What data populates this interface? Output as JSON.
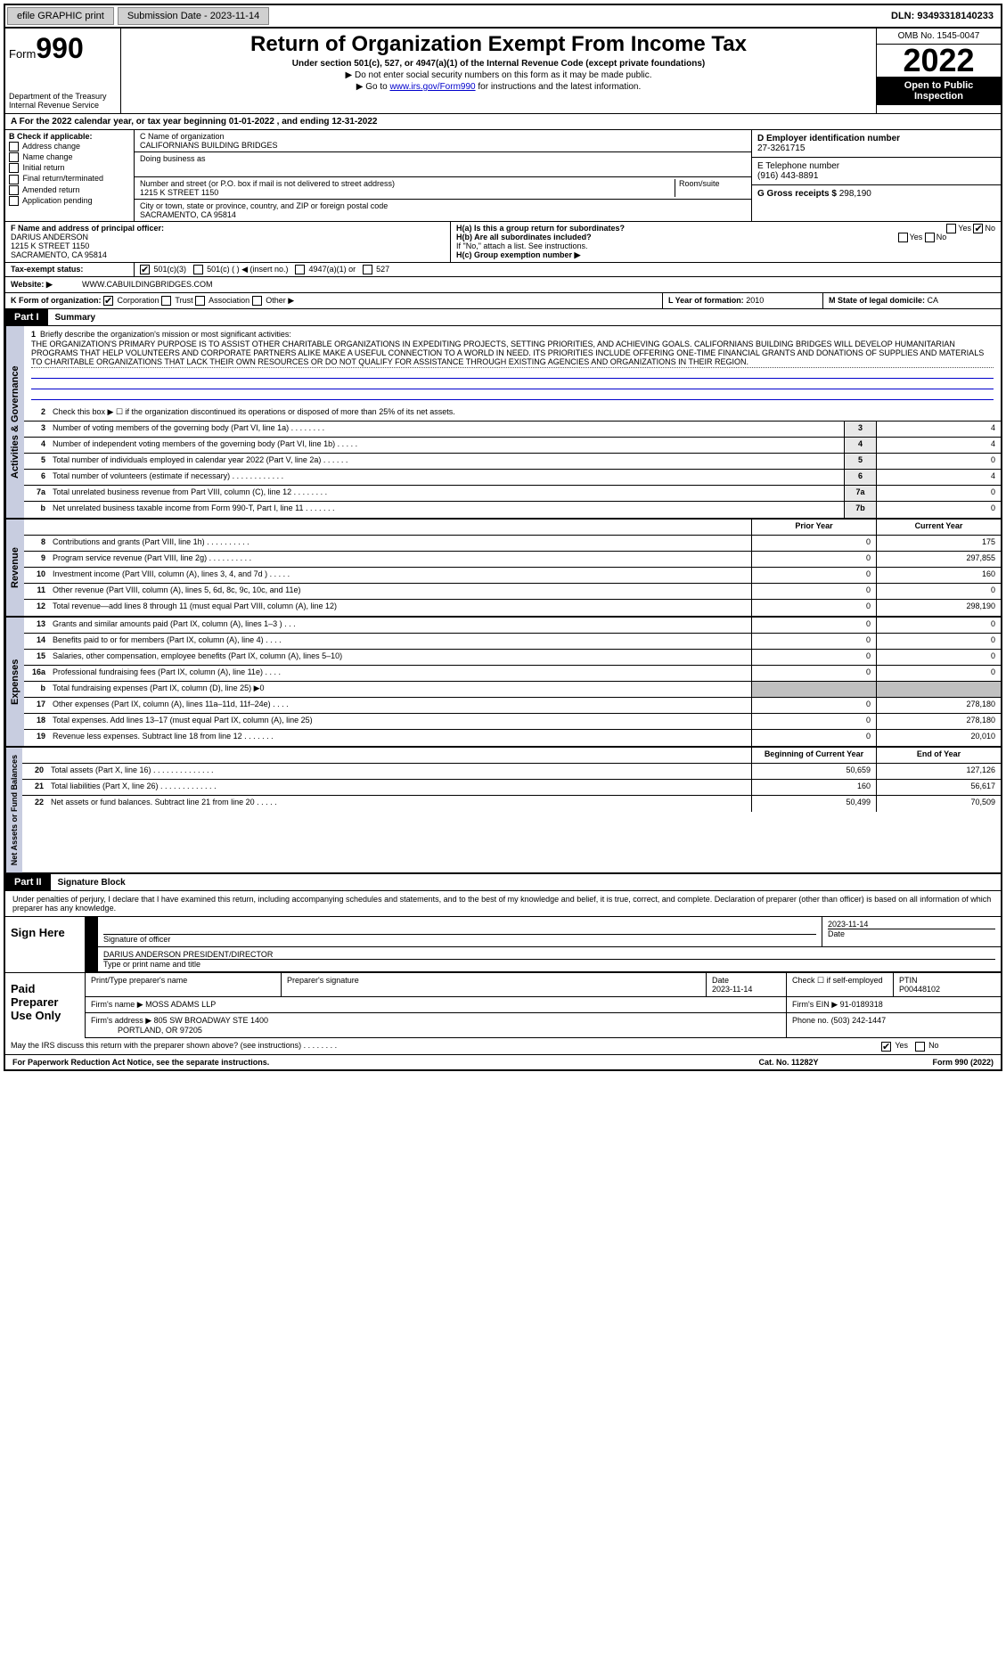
{
  "topbar": {
    "efile": "efile GRAPHIC print",
    "submission_label": "Submission Date - 2023-11-14",
    "dln": "DLN: 93493318140233"
  },
  "header": {
    "form_label": "Form",
    "form_num": "990",
    "title": "Return of Organization Exempt From Income Tax",
    "subtitle": "Under section 501(c), 527, or 4947(a)(1) of the Internal Revenue Code (except private foundations)",
    "note1": "▶ Do not enter social security numbers on this form as it may be made public.",
    "note2_pre": "▶ Go to ",
    "note2_link": "www.irs.gov/Form990",
    "note2_post": " for instructions and the latest information.",
    "dept": "Department of the Treasury",
    "irs": "Internal Revenue Service",
    "omb": "OMB No. 1545-0047",
    "year": "2022",
    "inspection": "Open to Public Inspection"
  },
  "period": {
    "line": "A For the 2022 calendar year, or tax year beginning 01-01-2022     , and ending 12-31-2022"
  },
  "blockB": {
    "label": "B Check if applicable:",
    "items": [
      "Address change",
      "Name change",
      "Initial return",
      "Final return/terminated",
      "Amended return",
      "Application pending"
    ]
  },
  "blockC": {
    "name_label": "C Name of organization",
    "name": "CALIFORNIANS BUILDING BRIDGES",
    "dba_label": "Doing business as",
    "addr_label": "Number and street (or P.O. box if mail is not delivered to street address)",
    "room_label": "Room/suite",
    "addr": "1215 K STREET 1150",
    "city_label": "City or town, state or province, country, and ZIP or foreign postal code",
    "city": "SACRAMENTO, CA  95814"
  },
  "blockD": {
    "label": "D Employer identification number",
    "val": "27-3261715"
  },
  "blockE": {
    "label": "E Telephone number",
    "val": "(916) 443-8891"
  },
  "blockG": {
    "label": "G Gross receipts $",
    "val": "298,190"
  },
  "blockF": {
    "label": "F  Name and address of principal officer:",
    "name": "DARIUS ANDERSON",
    "addr1": "1215 K STREET 1150",
    "addr2": "SACRAMENTO, CA  95814"
  },
  "blockH": {
    "ha": "H(a)  Is this a group return for subordinates?",
    "hb": "H(b)  Are all subordinates included?",
    "hb_note": "If \"No,\" attach a list. See instructions.",
    "hc": "H(c)  Group exemption number ▶",
    "yes": "Yes",
    "no": "No"
  },
  "taxExempt": {
    "label": "Tax-exempt status:",
    "c3": "501(c)(3)",
    "c": "501(c) (   ) ◀ (insert no.)",
    "a1": "4947(a)(1) or",
    "s527": "527"
  },
  "website": {
    "label": "Website: ▶",
    "val": "WWW.CABUILDINGBRIDGES.COM"
  },
  "blockK": {
    "label": "K Form of organization:",
    "corp": "Corporation",
    "trust": "Trust",
    "assoc": "Association",
    "other": "Other ▶"
  },
  "blockL": {
    "label": "L Year of formation:",
    "val": "2010"
  },
  "blockM": {
    "label": "M State of legal domicile:",
    "val": "CA"
  },
  "part1": {
    "header": "Part I",
    "title": "Summary",
    "mission_label": "Briefly describe the organization's mission or most significant activities:",
    "mission": "THE ORGANIZATION'S PRIMARY PURPOSE IS TO ASSIST OTHER CHARITABLE ORGANIZATIONS IN EXPEDITING PROJECTS, SETTING PRIORITIES, AND ACHIEVING GOALS. CALIFORNIANS BUILDING BRIDGES WILL DEVELOP HUMANITARIAN PROGRAMS THAT HELP VOLUNTEERS AND CORPORATE PARTNERS ALIKE MAKE A USEFUL CONNECTION TO A WORLD IN NEED. ITS PRIORITIES INCLUDE OFFERING ONE-TIME FINANCIAL GRANTS AND DONATIONS OF SUPPLIES AND MATERIALS TO CHARITABLE ORGANIZATIONS THAT LACK THEIR OWN RESOURCES OR DO NOT QUALIFY FOR ASSISTANCE THROUGH EXISTING AGENCIES AND ORGANIZATIONS IN THEIR REGION.",
    "line2": "Check this box ▶ ☐ if the organization discontinued its operations or disposed of more than 25% of its net assets.",
    "vlabels": {
      "ag": "Activities & Governance",
      "rev": "Revenue",
      "exp": "Expenses",
      "net": "Net Assets or Fund Balances"
    },
    "headers": {
      "prior": "Prior Year",
      "current": "Current Year",
      "boy": "Beginning of Current Year",
      "eoy": "End of Year"
    },
    "lines_ag": [
      {
        "n": "3",
        "t": "Number of voting members of the governing body (Part VI, line 1a)   .    .    .    .    .    .    .    .",
        "c": "3",
        "v": "4"
      },
      {
        "n": "4",
        "t": "Number of independent voting members of the governing body (Part VI, line 1b)   .    .    .    .    .",
        "c": "4",
        "v": "4"
      },
      {
        "n": "5",
        "t": "Total number of individuals employed in calendar year 2022 (Part V, line 2a)   .    .    .    .    .    .",
        "c": "5",
        "v": "0"
      },
      {
        "n": "6",
        "t": "Total number of volunteers (estimate if necessary)   .    .    .    .    .    .    .    .    .    .    .    .",
        "c": "6",
        "v": "4"
      },
      {
        "n": "7a",
        "t": "Total unrelated business revenue from Part VIII, column (C), line 12   .    .    .    .    .    .    .    .",
        "c": "7a",
        "v": "0"
      },
      {
        "n": "b",
        "t": "Net unrelated business taxable income from Form 990-T, Part I, line 11   .    .    .    .    .    .    .",
        "c": "7b",
        "v": "0"
      }
    ],
    "lines_rev": [
      {
        "n": "8",
        "t": "Contributions and grants (Part VIII, line 1h)   .    .    .    .    .    .    .    .    .    .",
        "p": "0",
        "c": "175"
      },
      {
        "n": "9",
        "t": "Program service revenue (Part VIII, line 2g)   .    .    .    .    .    .    .    .    .    .",
        "p": "0",
        "c": "297,855"
      },
      {
        "n": "10",
        "t": "Investment income (Part VIII, column (A), lines 3, 4, and 7d )   .    .    .    .    .",
        "p": "0",
        "c": "160"
      },
      {
        "n": "11",
        "t": "Other revenue (Part VIII, column (A), lines 5, 6d, 8c, 9c, 10c, and 11e)",
        "p": "0",
        "c": "0"
      },
      {
        "n": "12",
        "t": "Total revenue—add lines 8 through 11 (must equal Part VIII, column (A), line 12)",
        "p": "0",
        "c": "298,190"
      }
    ],
    "lines_exp": [
      {
        "n": "13",
        "t": "Grants and similar amounts paid (Part IX, column (A), lines 1–3 )   .    .    .",
        "p": "0",
        "c": "0"
      },
      {
        "n": "14",
        "t": "Benefits paid to or for members (Part IX, column (A), line 4)   .    .    .    .",
        "p": "0",
        "c": "0"
      },
      {
        "n": "15",
        "t": "Salaries, other compensation, employee benefits (Part IX, column (A), lines 5–10)",
        "p": "0",
        "c": "0"
      },
      {
        "n": "16a",
        "t": "Professional fundraising fees (Part IX, column (A), line 11e)   .    .    .    .",
        "p": "0",
        "c": "0"
      },
      {
        "n": "b",
        "t": "Total fundraising expenses (Part IX, column (D), line 25) ▶0",
        "p": "",
        "c": "",
        "shaded": true
      },
      {
        "n": "17",
        "t": "Other expenses (Part IX, column (A), lines 11a–11d, 11f–24e)   .    .    .    .",
        "p": "0",
        "c": "278,180"
      },
      {
        "n": "18",
        "t": "Total expenses. Add lines 13–17 (must equal Part IX, column (A), line 25)",
        "p": "0",
        "c": "278,180"
      },
      {
        "n": "19",
        "t": "Revenue less expenses. Subtract line 18 from line 12   .    .    .    .    .    .    .",
        "p": "0",
        "c": "20,010"
      }
    ],
    "lines_net": [
      {
        "n": "20",
        "t": "Total assets (Part X, line 16)   .    .    .    .    .    .    .    .    .    .    .    .    .    .",
        "p": "50,659",
        "c": "127,126"
      },
      {
        "n": "21",
        "t": "Total liabilities (Part X, line 26)   .    .    .    .    .    .    .    .    .    .    .    .    .",
        "p": "160",
        "c": "56,617"
      },
      {
        "n": "22",
        "t": "Net assets or fund balances. Subtract line 21 from line 20   .    .    .    .    .",
        "p": "50,499",
        "c": "70,509"
      }
    ]
  },
  "part2": {
    "header": "Part II",
    "title": "Signature Block",
    "declare": "Under penalties of perjury, I declare that I have examined this return, including accompanying schedules and statements, and to the best of my knowledge and belief, it is true, correct, and complete. Declaration of preparer (other than officer) is based on all information of which preparer has any knowledge.",
    "sign_here": "Sign Here",
    "sig_officer": "Signature of officer",
    "sig_date": "2023-11-14",
    "date_label": "Date",
    "officer_name": "DARIUS ANDERSON  PRESIDENT/DIRECTOR",
    "type_name": "Type or print name and title",
    "paid": "Paid Preparer Use Only",
    "prep_name_label": "Print/Type preparer's name",
    "prep_sig_label": "Preparer's signature",
    "prep_date_label": "Date",
    "prep_date": "2023-11-14",
    "check_label": "Check ☐ if self-employed",
    "ptin_label": "PTIN",
    "ptin": "P00448102",
    "firm_name_label": "Firm's name    ▶",
    "firm_name": "MOSS ADAMS LLP",
    "firm_ein_label": "Firm's EIN ▶",
    "firm_ein": "91-0189318",
    "firm_addr_label": "Firm's address ▶",
    "firm_addr1": "805 SW BROADWAY STE 1400",
    "firm_addr2": "PORTLAND, OR  97205",
    "phone_label": "Phone no.",
    "phone": "(503) 242-1447",
    "discuss": "May the IRS discuss this return with the preparer shown above? (see instructions)   .    .    .    .    .    .    .    .",
    "yes": "Yes",
    "no": "No"
  },
  "footer": {
    "paperwork": "For Paperwork Reduction Act Notice, see the separate instructions.",
    "cat": "Cat. No. 11282Y",
    "form": "Form 990 (2022)"
  }
}
